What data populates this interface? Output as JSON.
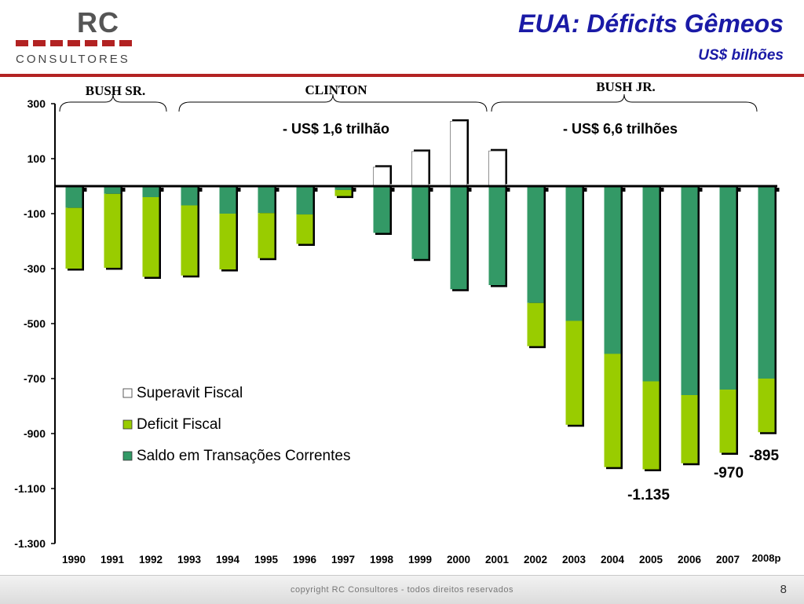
{
  "header": {
    "logo_rc": "RC",
    "logo_sub": "CONSULTORES",
    "title": "EUA: Déficits Gêmeos",
    "subtitle": "US$ bilhões"
  },
  "colors": {
    "superavit": "#ffffff",
    "deficit": "#99cc00",
    "saldo": "#339966",
    "brand_red": "#b22222",
    "title_blue": "#1a1aa6"
  },
  "chart_data": {
    "type": "bar",
    "title": "EUA: Déficits Gêmeos",
    "subtitle": "US$ bilhões",
    "categories": [
      "1990",
      "1991",
      "1992",
      "1993",
      "1994",
      "1995",
      "1996",
      "1997",
      "1998",
      "1999",
      "2000",
      "2001",
      "2002",
      "2003",
      "2004",
      "2005",
      "2006",
      "2007",
      "2008p"
    ],
    "series": [
      {
        "name": "Saldo em Transações Correntes",
        "values": [
          -79,
          -28,
          -40,
          -70,
          -100,
          -98,
          -103,
          -14,
          -170,
          -265,
          -375,
          -360,
          -425,
          -490,
          -610,
          -710,
          -760,
          -740,
          -700
        ]
      },
      {
        "name": "Deficit Fiscal",
        "values": [
          -221,
          -269,
          -290,
          -255,
          -203,
          -164,
          -107,
          -22,
          0,
          0,
          0,
          0,
          -157,
          -378,
          -412,
          -320,
          -248,
          -230,
          -195
        ]
      },
      {
        "name": "Superavit Fiscal",
        "values": [
          0,
          0,
          0,
          0,
          0,
          0,
          0,
          0,
          69,
          126,
          236,
          128,
          0,
          0,
          0,
          0,
          0,
          0,
          0
        ]
      }
    ],
    "ylim": [
      -1300,
      300
    ],
    "yticks": [
      300,
      100,
      -100,
      -300,
      -500,
      -700,
      -900,
      -1100,
      -1300
    ],
    "ytick_labels": [
      "300",
      "100",
      "-100",
      "-300",
      "-500",
      "-700",
      "-900",
      "-1.100",
      "-1.300"
    ],
    "legend": [
      "Superavit Fiscal",
      "Deficit Fiscal",
      "Saldo em Transações Correntes"
    ],
    "legend_position": "center",
    "periods": [
      {
        "label": "BUSH  SR.",
        "from": "1990",
        "to": "1992"
      },
      {
        "label": "CLINTON",
        "from": "1993",
        "to": "2000"
      },
      {
        "label": "BUSH   JR.",
        "from": "2001",
        "to": "2007"
      }
    ],
    "period_totals": [
      "- US$ 1,6 trilhão",
      "- US$ 6,6 trilhões"
    ],
    "data_labels": [
      "-1.135",
      "-970",
      "-895"
    ]
  },
  "footer": {
    "copyright": "copyright RC Consultores - todos direitos reservados",
    "page_number": "8"
  }
}
